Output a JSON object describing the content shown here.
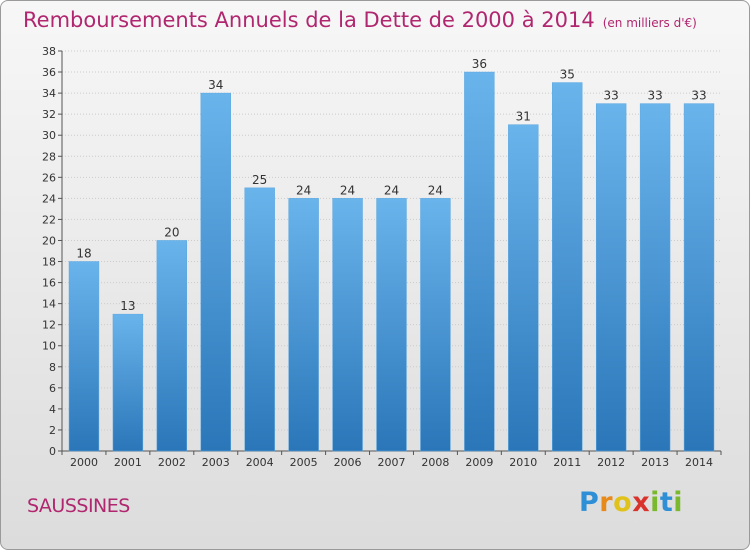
{
  "header": {
    "title": "Remboursements Annuels de la Dette de 2000 à 2014",
    "subtitle": "(en milliers d'€)"
  },
  "footer": {
    "city": "SAUSSINES",
    "brand": [
      "P",
      "r",
      "o",
      "x",
      "i",
      "t",
      "i"
    ]
  },
  "colors": {
    "title": "#b0266f",
    "bar_top": "#6ab4ec",
    "bar_bottom": "#2a76b8",
    "grid": "#cccccc"
  },
  "chart_data": {
    "type": "bar",
    "title": "Remboursements Annuels de la Dette de 2000 à 2014",
    "ylabel": "en milliers d'€",
    "xlabel": "",
    "categories": [
      "2000",
      "2001",
      "2002",
      "2003",
      "2004",
      "2005",
      "2006",
      "2007",
      "2008",
      "2009",
      "2010",
      "2011",
      "2012",
      "2013",
      "2014"
    ],
    "values": [
      18,
      13,
      20,
      34,
      25,
      24,
      24,
      24,
      24,
      36,
      31,
      35,
      33,
      33,
      33
    ],
    "ylim": [
      0,
      38
    ],
    "yticks": [
      0,
      2,
      4,
      6,
      8,
      10,
      12,
      14,
      16,
      18,
      20,
      22,
      24,
      26,
      28,
      30,
      32,
      34,
      36,
      38
    ],
    "grid": true
  }
}
